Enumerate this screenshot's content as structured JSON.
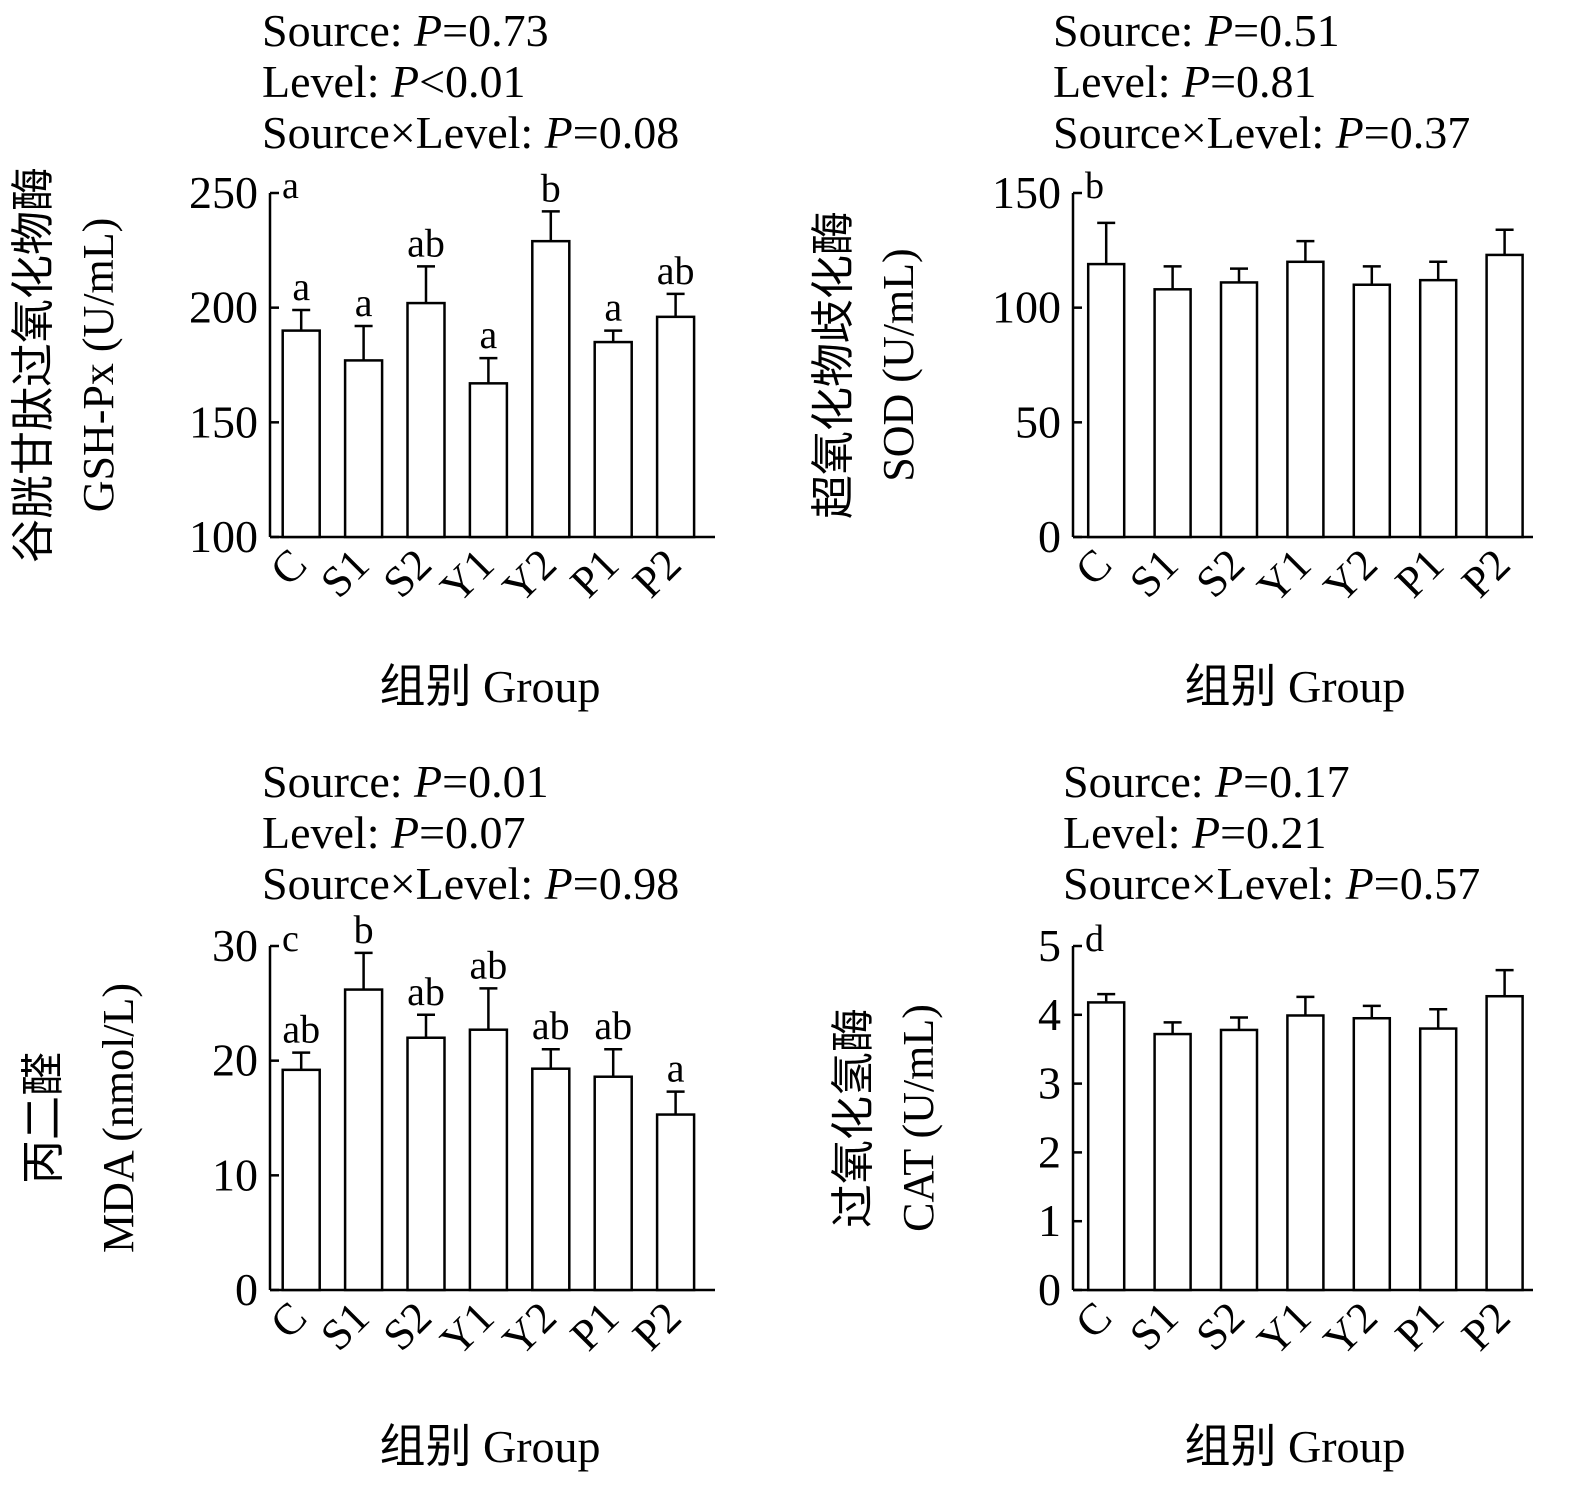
{
  "chart_data": [
    {
      "type": "bar",
      "panel": "a",
      "stats": [
        "Source: ",
        "P",
        "=0.73",
        "Level: ",
        "P",
        "<0.01",
        "Source×Level: ",
        "P",
        "=0.08"
      ],
      "ylabel_cn": "谷胱甘肽过氧化物酶",
      "ylabel_en": "GSH-Px (U/mL)",
      "xlabel": "组别 Group",
      "categories": [
        "C",
        "S1",
        "S2",
        "Y1",
        "Y2",
        "P1",
        "P2"
      ],
      "values": [
        190,
        177,
        202,
        167,
        229,
        185,
        196
      ],
      "errors": [
        9,
        15,
        16,
        11,
        13,
        5,
        10
      ],
      "sig_letters": [
        "a",
        "a",
        "ab",
        "a",
        "b",
        "a",
        "ab"
      ],
      "ylim": [
        100,
        250
      ],
      "yticks": [
        "100",
        "150",
        "200",
        "250"
      ]
    },
    {
      "type": "bar",
      "panel": "b",
      "stats": [
        "Source: ",
        "P",
        "=0.51",
        "Level: ",
        "P",
        "=0.81",
        "Source×Level: ",
        "P",
        "=0.37"
      ],
      "ylabel_cn": "超氧化物歧化酶",
      "ylabel_en": "SOD (U/mL)",
      "xlabel": "组别 Group",
      "categories": [
        "C",
        "S1",
        "S2",
        "Y1",
        "Y2",
        "P1",
        "P2"
      ],
      "values": [
        119,
        108,
        111,
        120,
        110,
        112,
        123
      ],
      "errors": [
        18,
        10,
        6,
        9,
        8,
        8,
        11
      ],
      "sig_letters": [
        "",
        "",
        "",
        "",
        "",
        "",
        ""
      ],
      "ylim": [
        0,
        150
      ],
      "yticks": [
        "0",
        "50",
        "100",
        "150"
      ]
    },
    {
      "type": "bar",
      "panel": "c",
      "stats": [
        "Source: ",
        "P",
        "=0.01",
        "Level: ",
        "P",
        "=0.07",
        "Source×Level: ",
        "P",
        "=0.98"
      ],
      "ylabel_cn": "丙二醛",
      "ylabel_en": "MDA (nmol/L)",
      "xlabel": "组别 Group",
      "categories": [
        "C",
        "S1",
        "S2",
        "Y1",
        "Y2",
        "P1",
        "P2"
      ],
      "values": [
        19.2,
        26.2,
        22.0,
        22.7,
        19.3,
        18.6,
        15.3
      ],
      "errors": [
        1.5,
        3.2,
        2.0,
        3.6,
        1.7,
        2.4,
        2.0
      ],
      "sig_letters": [
        "ab",
        "b",
        "ab",
        "ab",
        "ab",
        "ab",
        "a"
      ],
      "ylim": [
        0,
        30
      ],
      "yticks": [
        "0",
        "10",
        "20",
        "30"
      ]
    },
    {
      "type": "bar",
      "panel": "d",
      "stats": [
        "Source: ",
        "P",
        "=0.17",
        "Level: ",
        "P",
        "=0.21",
        "Source×Level: ",
        "P",
        "=0.57"
      ],
      "ylabel_cn": "过氧化氢酶",
      "ylabel_en": "CAT (U/mL)",
      "xlabel": "组别 Group",
      "categories": [
        "C",
        "S1",
        "S2",
        "Y1",
        "Y2",
        "P1",
        "P2"
      ],
      "values": [
        4.18,
        3.72,
        3.78,
        3.99,
        3.95,
        3.8,
        4.27
      ],
      "errors": [
        0.12,
        0.17,
        0.18,
        0.27,
        0.18,
        0.28,
        0.38
      ],
      "sig_letters": [
        "",
        "",
        "",
        "",
        "",
        "",
        ""
      ],
      "ylim": [
        0,
        5
      ],
      "yticks": [
        "0",
        "1",
        "2",
        "3",
        "4",
        "5"
      ]
    }
  ]
}
